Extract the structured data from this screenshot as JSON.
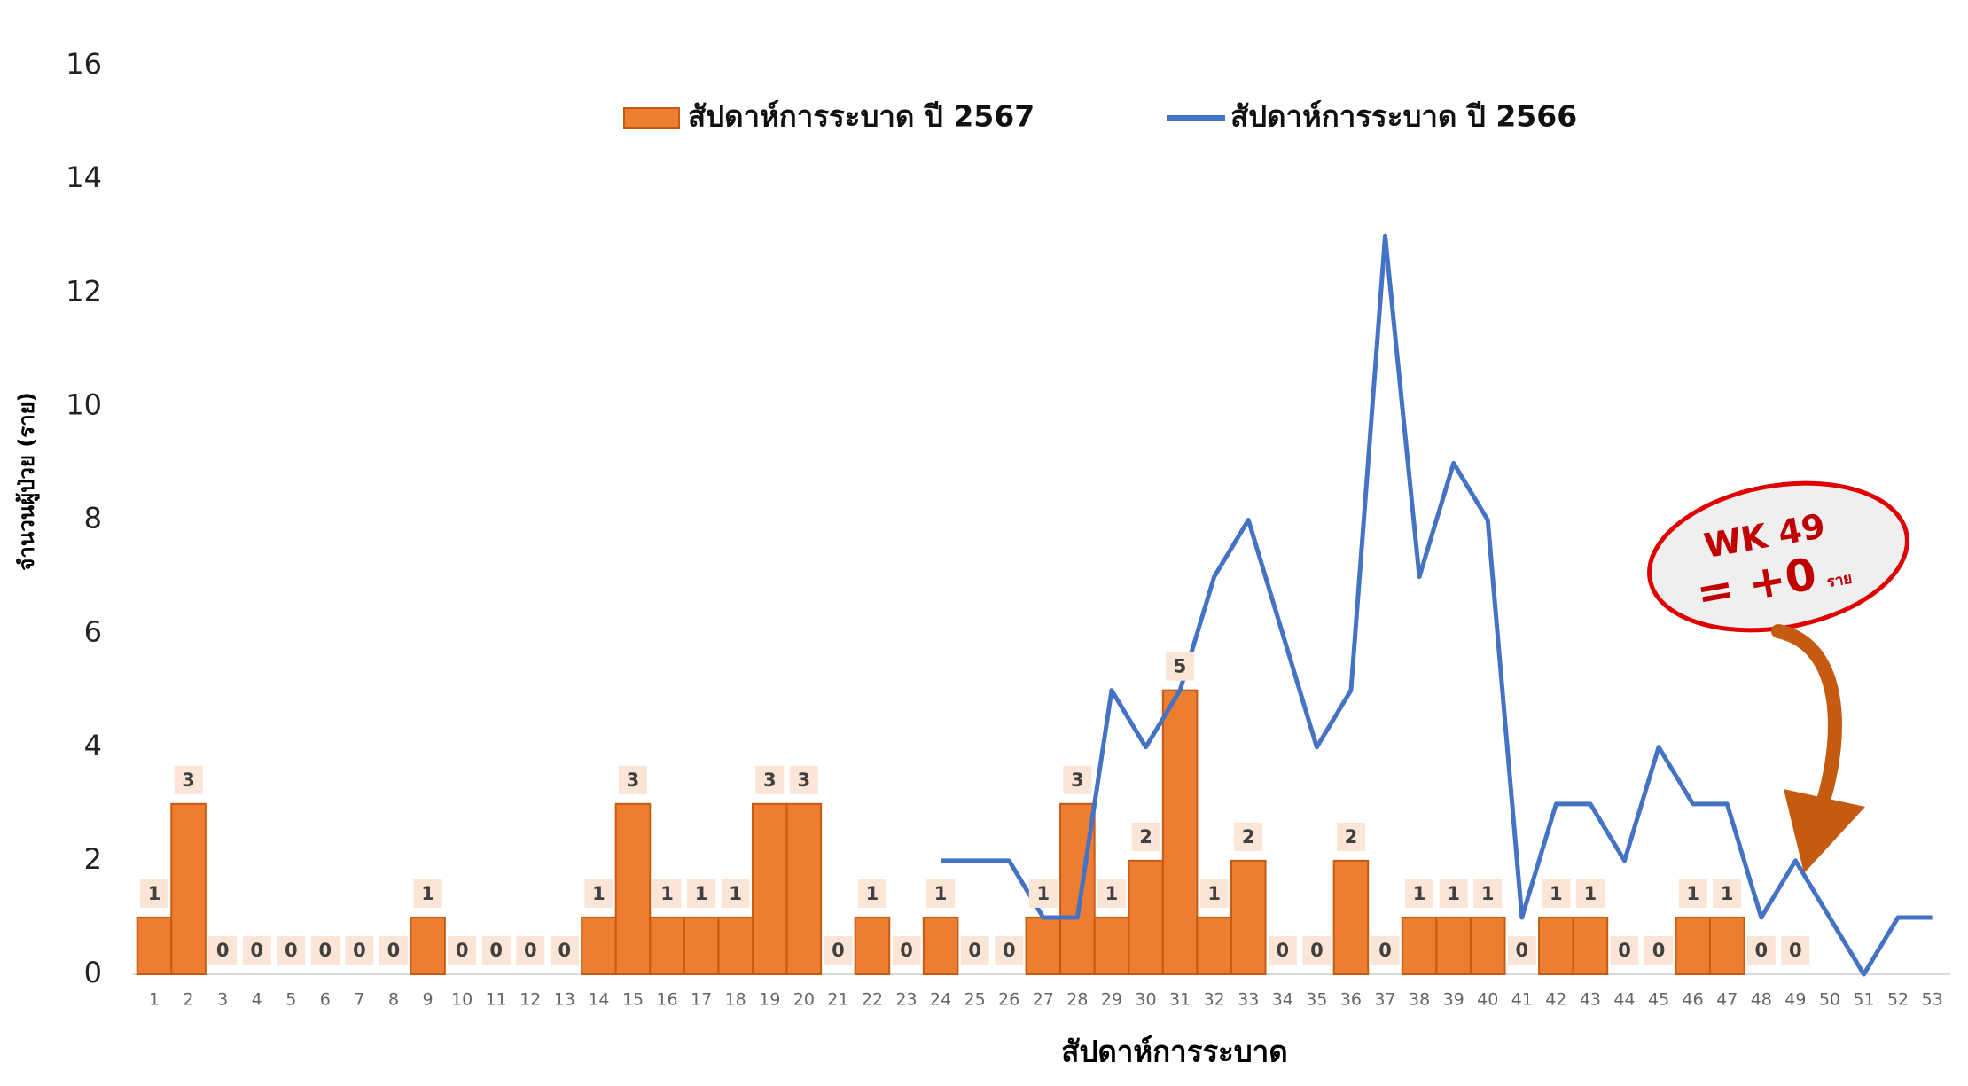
{
  "chart_data": {
    "type": "bar",
    "x_label": "สัปดาห์การระบาด",
    "y_label": "จำนวนผู้ป่วย (ราย)",
    "categories": [
      "1",
      "2",
      "3",
      "4",
      "5",
      "6",
      "7",
      "8",
      "9",
      "10",
      "11",
      "12",
      "13",
      "14",
      "15",
      "16",
      "17",
      "18",
      "19",
      "20",
      "21",
      "22",
      "23",
      "24",
      "25",
      "26",
      "27",
      "28",
      "29",
      "30",
      "31",
      "32",
      "33",
      "34",
      "35",
      "36",
      "37",
      "38",
      "39",
      "40",
      "41",
      "42",
      "43",
      "44",
      "45",
      "46",
      "47",
      "48",
      "49",
      "50",
      "51",
      "52",
      "53"
    ],
    "series": [
      {
        "name": "สัปดาห์การระบาด ปี 2567",
        "type": "bar",
        "color": "#ED7D31",
        "edge_color": "#C55A11",
        "values": [
          1,
          3,
          0,
          0,
          0,
          0,
          0,
          0,
          1,
          0,
          0,
          0,
          0,
          1,
          3,
          1,
          1,
          1,
          3,
          3,
          0,
          1,
          0,
          1,
          0,
          0,
          1,
          3,
          1,
          2,
          5,
          1,
          2,
          0,
          0,
          2,
          0,
          1,
          1,
          1,
          0,
          1,
          1,
          0,
          0,
          1,
          1,
          0,
          0,
          null,
          null,
          null,
          null
        ]
      },
      {
        "name": "สัปดาห์การระบาด ปี 2566",
        "type": "line",
        "color": "#4472C4",
        "values": [
          null,
          null,
          null,
          null,
          null,
          null,
          null,
          null,
          null,
          null,
          null,
          null,
          null,
          null,
          null,
          null,
          null,
          null,
          null,
          null,
          null,
          null,
          null,
          2,
          2,
          2,
          1,
          1,
          5,
          4,
          5,
          7,
          8,
          6,
          4,
          5,
          13,
          7,
          9,
          8,
          1,
          3,
          3,
          2,
          4,
          3,
          3,
          1,
          2,
          1,
          0,
          1,
          1
        ]
      }
    ],
    "ylim": [
      0,
      16
    ],
    "yticks": [
      0,
      2,
      4,
      6,
      8,
      10,
      12,
      14,
      16
    ],
    "grid": false,
    "legend": "top",
    "annotations": [
      "WK 49",
      "= +0",
      "ราย"
    ]
  }
}
